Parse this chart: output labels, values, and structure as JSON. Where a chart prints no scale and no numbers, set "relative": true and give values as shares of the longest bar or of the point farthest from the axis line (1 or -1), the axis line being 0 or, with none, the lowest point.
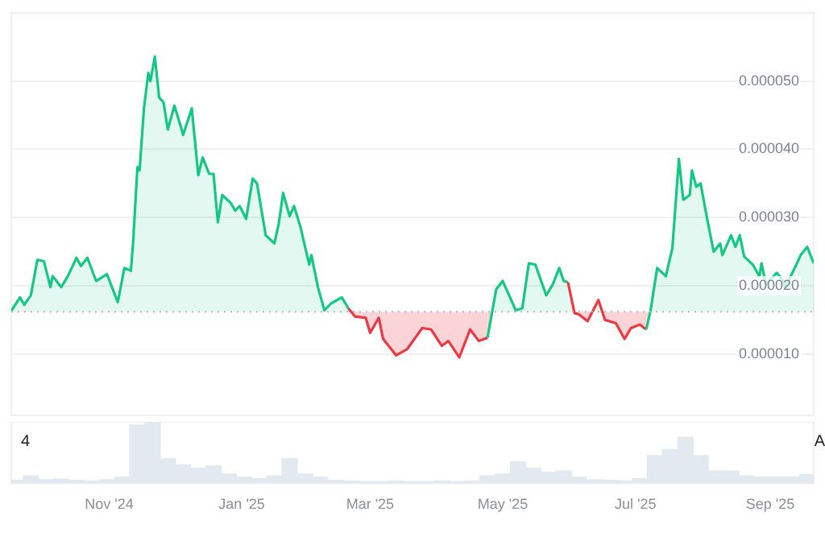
{
  "chart_data": [
    {
      "type": "area",
      "x": [
        "2024-09-17",
        "2024-09-21",
        "2024-09-23",
        "2024-09-26",
        "2024-09-29",
        "2024-10-02",
        "2024-10-05",
        "2024-10-06",
        "2024-10-10",
        "2024-10-13",
        "2024-10-17",
        "2024-10-19",
        "2024-10-22",
        "2024-10-26",
        "2024-10-31",
        "2024-11-05",
        "2024-11-08",
        "2024-11-11",
        "2024-11-12",
        "2024-11-14",
        "2024-11-15",
        "2024-11-17",
        "2024-11-19",
        "2024-11-20",
        "2024-11-22",
        "2024-11-24",
        "2024-11-26",
        "2024-11-28",
        "2024-12-01",
        "2024-12-04",
        "2024-12-05",
        "2024-12-09",
        "2024-12-12",
        "2024-12-14",
        "2024-12-17",
        "2024-12-19",
        "2024-12-21",
        "2024-12-23",
        "2024-12-27",
        "2024-12-29",
        "2024-12-31",
        "2025-01-03",
        "2025-01-06",
        "2025-01-08",
        "2025-01-12",
        "2025-01-16",
        "2025-01-18",
        "2025-01-20",
        "2025-01-23",
        "2025-01-25",
        "2025-01-28",
        "2025-02-01",
        "2025-02-02",
        "2025-02-05",
        "2025-02-08",
        "2025-02-11",
        "2025-02-16",
        "2025-02-19",
        "2025-02-22",
        "2025-02-27",
        "2025-03-01",
        "2025-03-05",
        "2025-03-07",
        "2025-03-13",
        "2025-03-18",
        "2025-03-25",
        "2025-03-29",
        "2025-04-03",
        "2025-04-06",
        "2025-04-11",
        "2025-04-16",
        "2025-04-20",
        "2025-04-24",
        "2025-04-28",
        "2025-05-01",
        "2025-05-07",
        "2025-05-10",
        "2025-05-13",
        "2025-05-16",
        "2025-05-21",
        "2025-05-24",
        "2025-05-27",
        "2025-05-29",
        "2025-05-31",
        "2025-06-03",
        "2025-06-05",
        "2025-06-09",
        "2025-06-14",
        "2025-06-17",
        "2025-06-22",
        "2025-06-26",
        "2025-06-29",
        "2025-07-03",
        "2025-07-06",
        "2025-07-08",
        "2025-07-11",
        "2025-07-15",
        "2025-07-18",
        "2025-07-21",
        "2025-07-23",
        "2025-07-26",
        "2025-07-27",
        "2025-07-29",
        "2025-07-31",
        "2025-08-03",
        "2025-08-06",
        "2025-08-09",
        "2025-08-10",
        "2025-08-14",
        "2025-08-16",
        "2025-08-18",
        "2025-08-20",
        "2025-08-24",
        "2025-08-27",
        "2025-08-28",
        "2025-08-30",
        "2025-09-04",
        "2025-09-07",
        "2025-09-08",
        "2025-09-13",
        "2025-09-15",
        "2025-09-18",
        "2025-09-21"
      ],
      "series": [
        {
          "color": "#16c784",
          "values": [
            1.63e-05,
            1.83e-05,
            1.72e-05,
            1.86e-05,
            2.38e-05,
            2.36e-05,
            1.98e-05,
            2.14e-05,
            1.98e-05,
            2.14e-05,
            2.41e-05,
            2.29e-05,
            2.41e-05,
            2.07e-05,
            2.17e-05,
            1.76e-05,
            2.26e-05,
            2.22e-05,
            2.62e-05,
            3.74e-05,
            3.69e-05,
            4.6e-05,
            5.12e-05,
            5e-05,
            5.36e-05,
            4.76e-05,
            4.69e-05,
            4.29e-05,
            4.64e-05,
            4.33e-05,
            4.21e-05,
            4.6e-05,
            3.62e-05,
            3.88e-05,
            3.64e-05,
            3.64e-05,
            2.93e-05,
            3.33e-05,
            3.21e-05,
            3.1e-05,
            3.17e-05,
            2.98e-05,
            3.57e-05,
            3.5e-05,
            2.74e-05,
            2.62e-05,
            2.91e-05,
            3.36e-05,
            3.02e-05,
            3.17e-05,
            2.86e-05,
            2.31e-05,
            2.45e-05,
            1.98e-05,
            1.64e-05,
            1.74e-05,
            1.83e-05,
            1.67e-05,
            1.55e-05,
            1.53e-05,
            1.31e-05,
            1.53e-05,
            1.22e-05,
            9.8e-06,
            1.07e-05,
            1.38e-05,
            1.36e-05,
            1.12e-05,
            1.19e-05,
            9.5e-06,
            1.36e-05,
            1.19e-05,
            1.24e-05,
            1.95e-05,
            2.07e-05,
            1.64e-05,
            1.67e-05,
            2.33e-05,
            2.31e-05,
            1.86e-05,
            2.02e-05,
            2.26e-05,
            2.07e-05,
            2.05e-05,
            1.6e-05,
            1.58e-05,
            1.48e-05,
            1.79e-05,
            1.5e-05,
            1.45e-05,
            1.22e-05,
            1.38e-05,
            1.43e-05,
            1.36e-05,
            1.64e-05,
            2.26e-05,
            2.14e-05,
            2.55e-05,
            3.86e-05,
            3.26e-05,
            3.33e-05,
            3.69e-05,
            3.45e-05,
            3.5e-05,
            2.98e-05,
            2.5e-05,
            2.62e-05,
            2.45e-05,
            2.74e-05,
            2.57e-05,
            2.74e-05,
            2.43e-05,
            2.31e-05,
            2.14e-05,
            2.33e-05,
            2.02e-05,
            2.19e-05,
            2.07e-05,
            1.98e-05,
            2.31e-05,
            2.45e-05,
            2.57e-05,
            2.33e-05
          ],
          "colors": [
            "#16c784",
            "#16c784",
            "#16c784",
            "#16c784",
            "#16c784",
            "#16c784",
            "#16c784",
            "#16c784",
            "#16c784",
            "#16c784",
            "#16c784",
            "#16c784",
            "#16c784",
            "#16c784",
            "#16c784",
            "#16c784",
            "#16c784",
            "#16c784",
            "#16c784",
            "#16c784",
            "#16c784",
            "#16c784",
            "#16c784",
            "#16c784",
            "#16c784",
            "#16c784",
            "#16c784",
            "#16c784",
            "#16c784",
            "#16c784",
            "#16c784",
            "#16c784",
            "#16c784",
            "#16c784",
            "#16c784",
            "#16c784",
            "#16c784",
            "#16c784",
            "#16c784",
            "#16c784",
            "#16c784",
            "#16c784",
            "#16c784",
            "#16c784",
            "#16c784",
            "#16c784",
            "#16c784",
            "#16c784",
            "#16c784",
            "#16c784",
            "#16c784",
            "#16c784",
            "#16c784",
            "#16c784",
            "#16c784",
            "#16c784",
            "#16c784",
            "#16c784",
            "#ea3943",
            "#ea3943",
            "#ea3943",
            "#ea3943",
            "#ea3943",
            "#ea3943",
            "#ea3943",
            "#ea3943",
            "#ea3943",
            "#ea3943",
            "#ea3943",
            "#ea3943",
            "#ea3943",
            "#ea3943",
            "#ea3943",
            "#16c784",
            "#16c784",
            "#16c784",
            "#16c784",
            "#16c784",
            "#16c784",
            "#16c784",
            "#16c784",
            "#16c784",
            "#16c784",
            "#16c784",
            "#ea3943",
            "#ea3943",
            "#ea3943",
            "#ea3943",
            "#ea3943",
            "#ea3943",
            "#ea3943",
            "#ea3943",
            "#ea3943",
            "#ea3943",
            "#16c784",
            "#16c784",
            "#16c784",
            "#16c784",
            "#16c784",
            "#16c784",
            "#16c784",
            "#16c784",
            "#16c784",
            "#16c784",
            "#16c784",
            "#16c784",
            "#16c784",
            "#16c784",
            "#16c784",
            "#16c784",
            "#16c784",
            "#16c784",
            "#16c784",
            "#16c784",
            "#16c784",
            "#16c784",
            "#16c784",
            "#16c784",
            "#16c784",
            "#16c784",
            "#16c784",
            "#16c784",
            "#16c784"
          ]
        }
      ],
      "xlim": [
        "2024-09-17",
        "2025-09-21"
      ],
      "ylim": [
        1e-06,
        6e-05
      ],
      "yticks": [
        {
          "value": 1e-05,
          "label": "0.000010"
        },
        {
          "value": 2e-05,
          "label": "0.000020"
        },
        {
          "value": 3e-05,
          "label": "0.000030"
        },
        {
          "value": 4e-05,
          "label": "0.000040"
        },
        {
          "value": 5e-05,
          "label": "0.000050"
        }
      ],
      "ref_lines": [
        {
          "axis": "y",
          "value": 1.62e-05,
          "color": "#b8b8b8",
          "line_style": "dotted"
        }
      ],
      "grid": "y",
      "marker": "none",
      "tick_labels": "y"
    },
    {
      "type": "bar",
      "relative": true,
      "color": "#e3e9f1",
      "x": [
        "2024-09-19",
        "2024-09-26",
        "2024-10-03",
        "2024-10-10",
        "2024-10-17",
        "2024-10-24",
        "2024-10-31",
        "2024-11-07",
        "2024-11-14",
        "2024-11-21",
        "2024-11-28",
        "2024-12-05",
        "2024-12-12",
        "2024-12-19",
        "2024-12-26",
        "2025-01-02",
        "2025-01-09",
        "2025-01-16",
        "2025-01-23",
        "2025-01-30",
        "2025-02-06",
        "2025-02-13",
        "2025-02-20",
        "2025-02-27",
        "2025-03-06",
        "2025-03-13",
        "2025-03-20",
        "2025-03-27",
        "2025-04-03",
        "2025-04-10",
        "2025-04-17",
        "2025-04-24",
        "2025-05-01",
        "2025-05-08",
        "2025-05-15",
        "2025-05-22",
        "2025-05-29",
        "2025-06-05",
        "2025-06-12",
        "2025-06-19",
        "2025-06-26",
        "2025-07-03",
        "2025-07-10",
        "2025-07-17",
        "2025-07-24",
        "2025-07-31",
        "2025-08-07",
        "2025-08-14",
        "2025-08-21",
        "2025-08-28",
        "2025-09-04",
        "2025-09-11",
        "2025-09-18"
      ],
      "values": [
        0.05,
        0.12,
        0.06,
        0.07,
        0.05,
        0.04,
        0.06,
        0.1,
        0.95,
        1,
        0.4,
        0.3,
        0.25,
        0.28,
        0.15,
        0.1,
        0.08,
        0.12,
        0.4,
        0.15,
        0.1,
        0.05,
        0.04,
        0.03,
        0.03,
        0.04,
        0.03,
        0.03,
        0.04,
        0.03,
        0.04,
        0.12,
        0.15,
        0.35,
        0.25,
        0.18,
        0.2,
        0.1,
        0.06,
        0.05,
        0.04,
        0.08,
        0.45,
        0.55,
        0.75,
        0.45,
        0.2,
        0.2,
        0.12,
        0.1,
        0.1,
        0.1,
        0.14
      ],
      "xlim": [
        "2024-09-17",
        "2025-09-21"
      ],
      "xticks": [
        {
          "value": "2024-11-01",
          "label": "Nov '24"
        },
        {
          "value": "2025-01-01",
          "label": "Jan '25"
        },
        {
          "value": "2025-03-01",
          "label": "Mar '25"
        },
        {
          "value": "2025-05-01",
          "label": "May '25"
        },
        {
          "value": "2025-07-01",
          "label": "Jul '25"
        },
        {
          "value": "2025-09-01",
          "label": "Sep '25"
        }
      ],
      "annotations": [
        "4",
        "A"
      ],
      "tick_labels": "x"
    }
  ]
}
